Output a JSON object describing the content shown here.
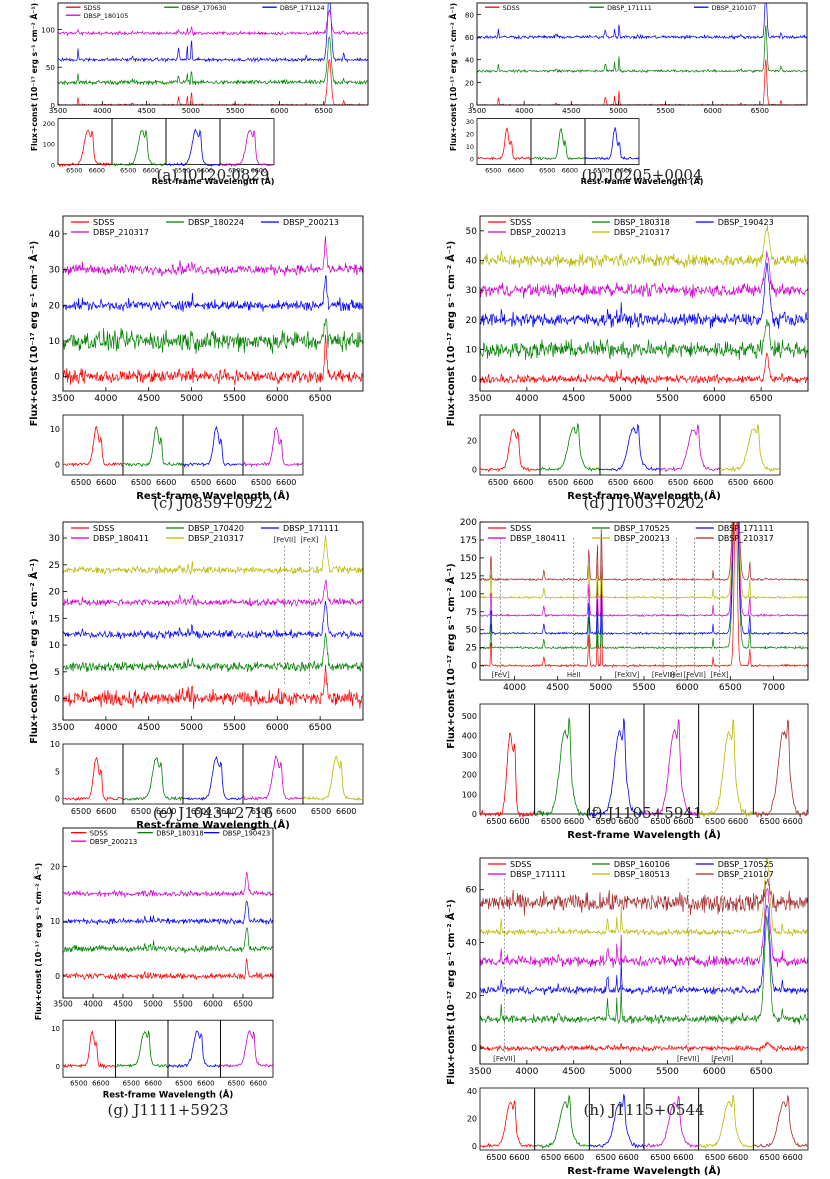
{
  "figure": {
    "ylabel": "Flux+const (10⁻¹⁷ erg s⁻¹ cm⁻² Å⁻¹)",
    "xlabel": "Rest-frame Wavelength (Å)"
  },
  "colors": {
    "SDSS": "#ff0000",
    "g1": "#008000",
    "g2": "#0000ff",
    "g3": "#cc00cc",
    "g4": "#b8b800",
    "g5": "#a52a2a"
  },
  "chart_data": [
    {
      "id": "a",
      "type": "line",
      "caption": "(a)   J0120-0829",
      "xlim": [
        3500,
        7000
      ],
      "xticks": [
        3500,
        4000,
        4500,
        5000,
        5500,
        6000,
        6500
      ],
      "ylim": [
        0,
        135
      ],
      "yticks": [
        0,
        50,
        100
      ],
      "inset_ylim": [
        0,
        220
      ],
      "inset_yticks": [
        0,
        100,
        200
      ],
      "inset_xticks": [
        "6500",
        "6600"
      ],
      "series": [
        {
          "name": "SDSS",
          "offset": 0,
          "noise": 2,
          "peak": 60,
          "width": 18
        },
        {
          "name": "DBSP_170630",
          "offset": 30,
          "noise": 4,
          "peak": 60,
          "width": 18
        },
        {
          "name": "DBSP_171124",
          "offset": 60,
          "noise": 3,
          "peak": 90,
          "width": 18
        },
        {
          "name": "DBSP_180105",
          "offset": 95,
          "noise": 3,
          "peak": 30,
          "width": 18
        }
      ],
      "lines": []
    },
    {
      "id": "b",
      "type": "line",
      "caption": "(b)   J0205+0004",
      "xlim": [
        3500,
        7000
      ],
      "xticks": [
        3500,
        4000,
        4500,
        5000,
        5500,
        6000,
        6500
      ],
      "ylim": [
        0,
        90
      ],
      "yticks": [
        0,
        20,
        40,
        60,
        80
      ],
      "inset_ylim": [
        -5,
        32
      ],
      "inset_yticks": [
        0,
        10,
        20,
        30
      ],
      "inset_xticks": [
        "6500",
        "6600"
      ],
      "series": [
        {
          "name": "SDSS",
          "offset": 0,
          "noise": 1,
          "peak": 40,
          "width": 10
        },
        {
          "name": "DBSP_171111",
          "offset": 30,
          "noise": 1.5,
          "peak": 40,
          "width": 10
        },
        {
          "name": "DBSP_210107",
          "offset": 60,
          "noise": 2,
          "peak": 40,
          "width": 10
        }
      ],
      "lines": []
    },
    {
      "id": "c",
      "type": "line",
      "caption": "(c)   J0859+0922",
      "xlim": [
        3500,
        7000
      ],
      "xticks": [
        3500,
        4000,
        4500,
        5000,
        5500,
        6000,
        6500
      ],
      "ylim": [
        -4,
        45
      ],
      "yticks": [
        0,
        10,
        20,
        30,
        40
      ],
      "inset_ylim": [
        -3,
        14
      ],
      "inset_yticks": [
        0,
        10
      ],
      "inset_xticks": [
        "6500",
        "6600"
      ],
      "series": [
        {
          "name": "SDSS",
          "offset": 0,
          "noise": 2.5,
          "peak": 10,
          "width": 12
        },
        {
          "name": "DBSP_180224",
          "offset": 10,
          "noise": 4,
          "peak": 6,
          "width": 12
        },
        {
          "name": "DBSP_200213",
          "offset": 20,
          "noise": 2,
          "peak": 8,
          "width": 12
        },
        {
          "name": "DBSP_210317",
          "offset": 30,
          "noise": 2,
          "peak": 8,
          "width": 12
        }
      ],
      "lines": []
    },
    {
      "id": "d",
      "type": "line",
      "caption": "(d)   J1003+0202",
      "xlim": [
        3500,
        7000
      ],
      "xticks": [
        3500,
        4000,
        4500,
        5000,
        5500,
        6000,
        6500
      ],
      "ylim": [
        -4,
        55
      ],
      "yticks": [
        0,
        10,
        20,
        30,
        40,
        50
      ],
      "inset_ylim": [
        -4,
        38
      ],
      "inset_yticks": [
        0,
        20
      ],
      "inset_xticks": [
        "6500",
        "6600"
      ],
      "series": [
        {
          "name": "SDSS",
          "offset": 0,
          "noise": 2,
          "peak": 8,
          "width": 16
        },
        {
          "name": "DBSP_180318",
          "offset": 10,
          "noise": 4,
          "peak": 10,
          "width": 22
        },
        {
          "name": "DBSP_190423",
          "offset": 20,
          "noise": 3,
          "peak": 18,
          "width": 22
        },
        {
          "name": "DBSP_200213",
          "offset": 30,
          "noise": 3,
          "peak": 12,
          "width": 22
        },
        {
          "name": "DBSP_210317",
          "offset": 40,
          "noise": 3,
          "peak": 12,
          "width": 22
        }
      ],
      "lines": []
    },
    {
      "id": "e",
      "type": "line",
      "caption": "(e)   J1043+2716",
      "xlim": [
        3500,
        7000
      ],
      "xticks": [
        3500,
        4000,
        4500,
        5000,
        5500,
        6000,
        6500
      ],
      "ylim": [
        -4,
        33
      ],
      "yticks": [
        0,
        5,
        10,
        15,
        20,
        25,
        30
      ],
      "inset_ylim": [
        -1,
        10
      ],
      "inset_yticks": [
        0,
        5,
        10
      ],
      "inset_xticks": [
        "6500",
        "6600"
      ],
      "series": [
        {
          "name": "SDSS",
          "offset": 0,
          "noise": 2,
          "peak": 6,
          "width": 12
        },
        {
          "name": "DBSP_170420",
          "offset": 6,
          "noise": 1.2,
          "peak": 6,
          "width": 16
        },
        {
          "name": "DBSP_171111",
          "offset": 12,
          "noise": 1,
          "peak": 6,
          "width": 16
        },
        {
          "name": "DBSP_180411",
          "offset": 18,
          "noise": 0.9,
          "peak": 4,
          "width": 16
        },
        {
          "name": "DBSP_210317",
          "offset": 24,
          "noise": 0.9,
          "peak": 6,
          "width": 16
        }
      ],
      "lines": [
        {
          "label": "[FeVII]",
          "x": 6087,
          "pos": "top"
        },
        {
          "label": "[FeX]",
          "x": 6375,
          "pos": "top"
        }
      ]
    },
    {
      "id": "f",
      "type": "line",
      "caption": "(f)   J1105+5941",
      "xlim": [
        3600,
        7400
      ],
      "xticks": [
        4000,
        4500,
        5000,
        5500,
        6000,
        6500,
        7000
      ],
      "ylim": [
        -20,
        200
      ],
      "yticks": [
        0,
        25,
        50,
        75,
        100,
        125,
        150,
        175,
        200
      ],
      "inset_ylim": [
        0,
        560
      ],
      "inset_yticks": [
        0,
        100,
        200,
        300,
        400,
        500
      ],
      "inset_xticks": [
        "6500",
        "6600"
      ],
      "series": [
        {
          "name": "SDSS",
          "offset": 0,
          "noise": 2,
          "peak": 250,
          "width": 15
        },
        {
          "name": "DBSP_170525",
          "offset": 25,
          "noise": 2,
          "peak": 250,
          "width": 25
        },
        {
          "name": "DBSP_171111",
          "offset": 45,
          "noise": 2,
          "peak": 250,
          "width": 25
        },
        {
          "name": "DBSP_180411",
          "offset": 70,
          "noise": 2,
          "peak": 250,
          "width": 25
        },
        {
          "name": "DBSP_200213",
          "offset": 95,
          "noise": 2,
          "peak": 250,
          "width": 25
        },
        {
          "name": "DBSP_210317",
          "offset": 120,
          "noise": 2,
          "peak": 250,
          "width": 25
        }
      ],
      "lines": [
        {
          "label": "[FeV]",
          "x": 3839,
          "pos": "bottom"
        },
        {
          "label": "HeII",
          "x": 4686,
          "pos": "bottom"
        },
        {
          "label": "[FeXIV]",
          "x": 5303,
          "pos": "bottom"
        },
        {
          "label": "[FeVII]",
          "x": 5721,
          "pos": "bottom"
        },
        {
          "label": "HeI",
          "x": 5876,
          "pos": "bottom"
        },
        {
          "label": "[FeVII]",
          "x": 6087,
          "pos": "bottom"
        },
        {
          "label": "[FeX]",
          "x": 6375,
          "pos": "bottom"
        }
      ]
    },
    {
      "id": "g",
      "type": "line",
      "caption": "(g)   J1111+5923",
      "xlim": [
        3500,
        7000
      ],
      "xticks": [
        3500,
        4000,
        4500,
        5000,
        5500,
        6000,
        6500
      ],
      "ylim": [
        -4,
        27
      ],
      "yticks": [
        0,
        10,
        20
      ],
      "inset_ylim": [
        -3,
        12
      ],
      "inset_yticks": [
        0,
        10
      ],
      "inset_xticks": [
        "6500",
        "6600"
      ],
      "series": [
        {
          "name": "SDSS",
          "offset": 0,
          "noise": 0.8,
          "peak": 3,
          "width": 12
        },
        {
          "name": "DBSP_180318",
          "offset": 5,
          "noise": 0.8,
          "peak": 4,
          "width": 18
        },
        {
          "name": "DBSP_190423",
          "offset": 10,
          "noise": 0.7,
          "peak": 4,
          "width": 18
        },
        {
          "name": "DBSP_200213",
          "offset": 15,
          "noise": 0.7,
          "peak": 4,
          "width": 18
        }
      ],
      "lines": []
    },
    {
      "id": "h",
      "type": "line",
      "caption": "(h)   J1115+0544",
      "xlim": [
        3500,
        7000
      ],
      "xticks": [
        3500,
        4000,
        4500,
        5000,
        5500,
        6000,
        6500
      ],
      "ylim": [
        -6,
        72
      ],
      "yticks": [
        0,
        20,
        40,
        60
      ],
      "inset_ylim": [
        -3,
        42
      ],
      "inset_yticks": [
        0,
        20,
        40
      ],
      "inset_xticks": [
        "6500",
        "6600"
      ],
      "series": [
        {
          "name": "SDSS",
          "offset": 0,
          "noise": 1.5,
          "peak": 2,
          "width": 20
        },
        {
          "name": "DBSP_160106",
          "offset": 11,
          "noise": 2,
          "peak": 38,
          "width": 25
        },
        {
          "name": "DBSP_170525",
          "offset": 22,
          "noise": 2,
          "peak": 32,
          "width": 25
        },
        {
          "name": "DBSP_171111",
          "offset": 33,
          "noise": 3,
          "peak": 28,
          "width": 25
        },
        {
          "name": "DBSP_180513",
          "offset": 44,
          "noise": 1.5,
          "peak": 28,
          "width": 25
        },
        {
          "name": "DBSP_210107",
          "offset": 55,
          "noise": 5,
          "peak": 8,
          "width": 25
        }
      ],
      "lines": [
        {
          "label": "[FeVII]",
          "x": 3759,
          "pos": "bottom"
        },
        {
          "label": "[FeVII]",
          "x": 5721,
          "pos": "bottom"
        },
        {
          "label": "[FeVII]",
          "x": 6087,
          "pos": "bottom"
        }
      ]
    }
  ]
}
